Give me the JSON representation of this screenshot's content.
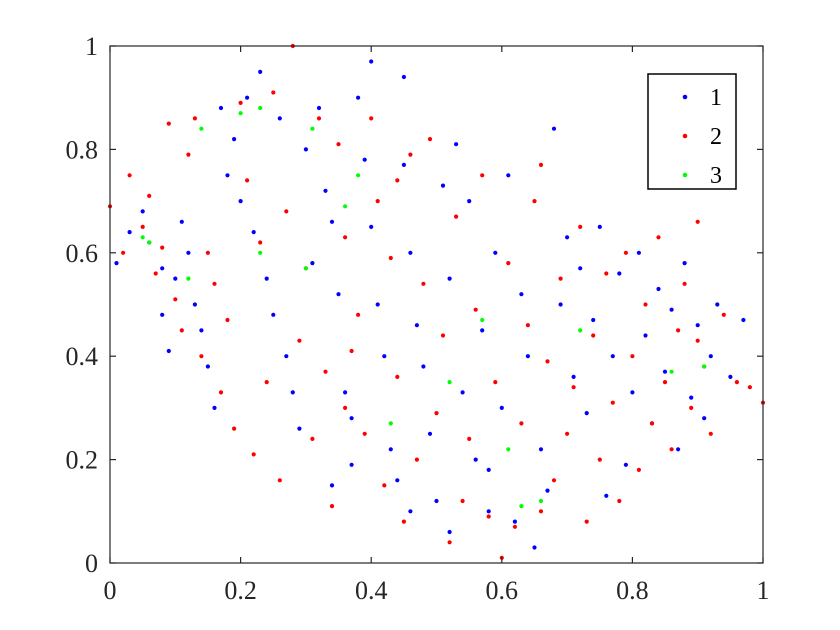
{
  "chart_data": {
    "type": "scatter",
    "title": "",
    "xlabel": "",
    "ylabel": "",
    "xlim": [
      0,
      1
    ],
    "ylim": [
      0,
      1
    ],
    "x_ticks": [
      "0",
      "0.2",
      "0.4",
      "0.6",
      "0.8",
      "1"
    ],
    "y_ticks": [
      "0",
      "0.2",
      "0.4",
      "0.6",
      "0.8",
      "1"
    ],
    "grid": false,
    "legend_position": "top-right",
    "series": [
      {
        "name": "1",
        "color": "#0000ff",
        "points": [
          [
            0.01,
            0.58
          ],
          [
            0.03,
            0.64
          ],
          [
            0.05,
            0.68
          ],
          [
            0.06,
            0.62
          ],
          [
            0.08,
            0.57
          ],
          [
            0.08,
            0.48
          ],
          [
            0.09,
            0.41
          ],
          [
            0.1,
            0.55
          ],
          [
            0.11,
            0.66
          ],
          [
            0.12,
            0.6
          ],
          [
            0.13,
            0.5
          ],
          [
            0.14,
            0.45
          ],
          [
            0.15,
            0.38
          ],
          [
            0.16,
            0.3
          ],
          [
            0.17,
            0.88
          ],
          [
            0.18,
            0.75
          ],
          [
            0.19,
            0.82
          ],
          [
            0.2,
            0.7
          ],
          [
            0.21,
            0.9
          ],
          [
            0.22,
            0.64
          ],
          [
            0.23,
            0.95
          ],
          [
            0.24,
            0.55
          ],
          [
            0.25,
            0.48
          ],
          [
            0.26,
            0.86
          ],
          [
            0.27,
            0.4
          ],
          [
            0.28,
            0.33
          ],
          [
            0.29,
            0.26
          ],
          [
            0.3,
            0.8
          ],
          [
            0.31,
            0.58
          ],
          [
            0.32,
            0.88
          ],
          [
            0.33,
            0.72
          ],
          [
            0.34,
            0.66
          ],
          [
            0.35,
            0.52
          ],
          [
            0.36,
            0.33
          ],
          [
            0.37,
            0.28
          ],
          [
            0.37,
            0.19
          ],
          [
            0.38,
            0.9
          ],
          [
            0.39,
            0.78
          ],
          [
            0.4,
            0.97
          ],
          [
            0.4,
            0.65
          ],
          [
            0.41,
            0.5
          ],
          [
            0.42,
            0.4
          ],
          [
            0.43,
            0.22
          ],
          [
            0.44,
            0.16
          ],
          [
            0.45,
            0.77
          ],
          [
            0.45,
            0.94
          ],
          [
            0.46,
            0.6
          ],
          [
            0.47,
            0.46
          ],
          [
            0.48,
            0.38
          ],
          [
            0.49,
            0.25
          ],
          [
            0.5,
            0.12
          ],
          [
            0.51,
            0.73
          ],
          [
            0.52,
            0.55
          ],
          [
            0.53,
            0.81
          ],
          [
            0.54,
            0.33
          ],
          [
            0.55,
            0.7
          ],
          [
            0.56,
            0.2
          ],
          [
            0.57,
            0.45
          ],
          [
            0.58,
            0.1
          ],
          [
            0.59,
            0.6
          ],
          [
            0.6,
            0.3
          ],
          [
            0.61,
            0.75
          ],
          [
            0.62,
            0.08
          ],
          [
            0.63,
            0.52
          ],
          [
            0.64,
            0.4
          ],
          [
            0.65,
            0.03
          ],
          [
            0.66,
            0.22
          ],
          [
            0.67,
            0.14
          ],
          [
            0.68,
            0.84
          ],
          [
            0.69,
            0.5
          ],
          [
            0.7,
            0.63
          ],
          [
            0.71,
            0.36
          ],
          [
            0.72,
            0.57
          ],
          [
            0.73,
            0.29
          ],
          [
            0.74,
            0.47
          ],
          [
            0.75,
            0.65
          ],
          [
            0.76,
            0.13
          ],
          [
            0.77,
            0.4
          ],
          [
            0.78,
            0.56
          ],
          [
            0.79,
            0.19
          ],
          [
            0.8,
            0.33
          ],
          [
            0.81,
            0.6
          ],
          [
            0.82,
            0.44
          ],
          [
            0.83,
            0.27
          ],
          [
            0.84,
            0.53
          ],
          [
            0.85,
            0.37
          ],
          [
            0.86,
            0.49
          ],
          [
            0.87,
            0.22
          ],
          [
            0.88,
            0.58
          ],
          [
            0.89,
            0.32
          ],
          [
            0.9,
            0.46
          ],
          [
            0.91,
            0.28
          ],
          [
            0.92,
            0.4
          ],
          [
            0.93,
            0.5
          ],
          [
            0.95,
            0.36
          ],
          [
            0.97,
            0.47
          ],
          [
            0.46,
            0.1
          ],
          [
            0.52,
            0.06
          ],
          [
            0.58,
            0.18
          ],
          [
            0.34,
            0.15
          ]
        ]
      },
      {
        "name": "2",
        "color": "#ff0000",
        "points": [
          [
            0.0,
            0.69
          ],
          [
            0.02,
            0.6
          ],
          [
            0.03,
            0.75
          ],
          [
            0.05,
            0.65
          ],
          [
            0.06,
            0.71
          ],
          [
            0.07,
            0.56
          ],
          [
            0.08,
            0.61
          ],
          [
            0.09,
            0.85
          ],
          [
            0.1,
            0.51
          ],
          [
            0.11,
            0.45
          ],
          [
            0.12,
            0.79
          ],
          [
            0.13,
            0.86
          ],
          [
            0.14,
            0.4
          ],
          [
            0.15,
            0.6
          ],
          [
            0.16,
            0.54
          ],
          [
            0.17,
            0.33
          ],
          [
            0.18,
            0.47
          ],
          [
            0.19,
            0.26
          ],
          [
            0.2,
            0.89
          ],
          [
            0.21,
            0.74
          ],
          [
            0.22,
            0.21
          ],
          [
            0.23,
            0.62
          ],
          [
            0.24,
            0.35
          ],
          [
            0.25,
            0.91
          ],
          [
            0.26,
            0.16
          ],
          [
            0.27,
            0.68
          ],
          [
            0.28,
            1.0
          ],
          [
            0.29,
            0.43
          ],
          [
            0.3,
            0.57
          ],
          [
            0.31,
            0.24
          ],
          [
            0.32,
            0.86
          ],
          [
            0.33,
            0.37
          ],
          [
            0.34,
            0.11
          ],
          [
            0.35,
            0.81
          ],
          [
            0.36,
            0.63
          ],
          [
            0.37,
            0.41
          ],
          [
            0.38,
            0.48
          ],
          [
            0.39,
            0.25
          ],
          [
            0.4,
            0.86
          ],
          [
            0.41,
            0.7
          ],
          [
            0.42,
            0.15
          ],
          [
            0.43,
            0.59
          ],
          [
            0.44,
            0.36
          ],
          [
            0.45,
            0.08
          ],
          [
            0.46,
            0.79
          ],
          [
            0.47,
            0.2
          ],
          [
            0.48,
            0.54
          ],
          [
            0.49,
            0.82
          ],
          [
            0.5,
            0.29
          ],
          [
            0.51,
            0.44
          ],
          [
            0.52,
            0.04
          ],
          [
            0.53,
            0.67
          ],
          [
            0.54,
            0.12
          ],
          [
            0.55,
            0.24
          ],
          [
            0.56,
            0.49
          ],
          [
            0.57,
            0.75
          ],
          [
            0.58,
            0.09
          ],
          [
            0.59,
            0.35
          ],
          [
            0.6,
            0.01
          ],
          [
            0.61,
            0.58
          ],
          [
            0.62,
            0.07
          ],
          [
            0.63,
            0.27
          ],
          [
            0.64,
            0.46
          ],
          [
            0.65,
            0.7
          ],
          [
            0.66,
            0.1
          ],
          [
            0.67,
            0.39
          ],
          [
            0.68,
            0.16
          ],
          [
            0.69,
            0.55
          ],
          [
            0.7,
            0.25
          ],
          [
            0.71,
            0.34
          ],
          [
            0.72,
            0.65
          ],
          [
            0.73,
            0.08
          ],
          [
            0.74,
            0.44
          ],
          [
            0.75,
            0.2
          ],
          [
            0.76,
            0.56
          ],
          [
            0.77,
            0.31
          ],
          [
            0.78,
            0.12
          ],
          [
            0.79,
            0.6
          ],
          [
            0.8,
            0.4
          ],
          [
            0.81,
            0.18
          ],
          [
            0.82,
            0.5
          ],
          [
            0.83,
            0.27
          ],
          [
            0.84,
            0.63
          ],
          [
            0.85,
            0.35
          ],
          [
            0.86,
            0.22
          ],
          [
            0.87,
            0.45
          ],
          [
            0.88,
            0.54
          ],
          [
            0.89,
            0.3
          ],
          [
            0.9,
            0.43
          ],
          [
            0.91,
            0.38
          ],
          [
            0.92,
            0.25
          ],
          [
            0.94,
            0.48
          ],
          [
            0.96,
            0.35
          ],
          [
            0.98,
            0.34
          ],
          [
            1.0,
            0.31
          ],
          [
            0.66,
            0.77
          ],
          [
            0.86,
            0.75
          ],
          [
            0.9,
            0.66
          ],
          [
            0.44,
            0.74
          ],
          [
            0.36,
            0.3
          ]
        ]
      },
      {
        "name": "3",
        "color": "#00ff00",
        "points": [
          [
            0.05,
            0.63
          ],
          [
            0.06,
            0.62
          ],
          [
            0.12,
            0.55
          ],
          [
            0.14,
            0.84
          ],
          [
            0.2,
            0.87
          ],
          [
            0.23,
            0.88
          ],
          [
            0.23,
            0.6
          ],
          [
            0.3,
            0.57
          ],
          [
            0.31,
            0.84
          ],
          [
            0.36,
            0.69
          ],
          [
            0.38,
            0.75
          ],
          [
            0.43,
            0.27
          ],
          [
            0.52,
            0.35
          ],
          [
            0.57,
            0.47
          ],
          [
            0.61,
            0.22
          ],
          [
            0.63,
            0.11
          ],
          [
            0.66,
            0.12
          ],
          [
            0.72,
            0.45
          ],
          [
            0.86,
            0.37
          ],
          [
            0.91,
            0.38
          ]
        ]
      }
    ]
  }
}
